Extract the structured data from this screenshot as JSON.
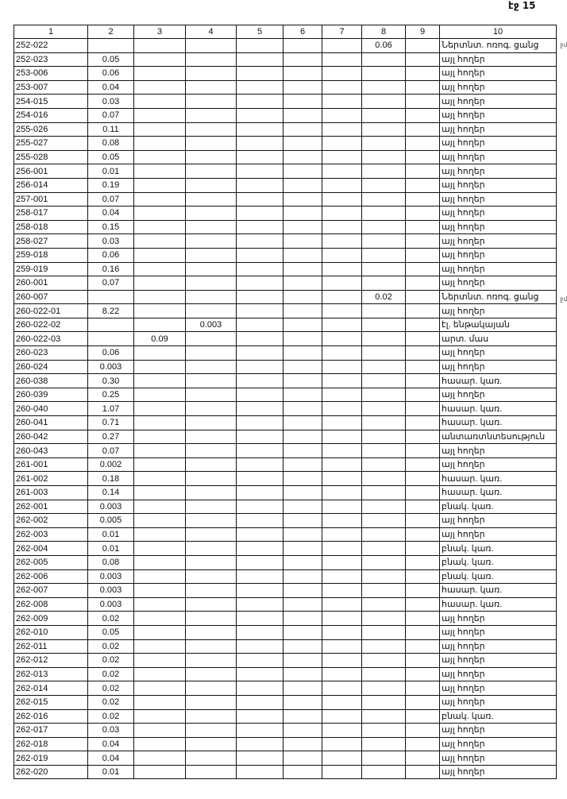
{
  "page_label": "էջ 15",
  "headers": [
    "1",
    "2",
    "3",
    "4",
    "5",
    "6",
    "7",
    "8",
    "9",
    "10"
  ],
  "rows": [
    [
      "252-022",
      "",
      "",
      "",
      "",
      "",
      "",
      "0.06",
      "",
      "Ներտնտ. ոռոգ. ցանց"
    ],
    [
      "252-023",
      "0.05",
      "",
      "",
      "",
      "",
      "",
      "",
      "",
      "այլ հողեր"
    ],
    [
      "253-006",
      "0.06",
      "",
      "",
      "",
      "",
      "",
      "",
      "",
      "այլ հողեր"
    ],
    [
      "253-007",
      "0.04",
      "",
      "",
      "",
      "",
      "",
      "",
      "",
      "այլ հողեր"
    ],
    [
      "254-015",
      "0.03",
      "",
      "",
      "",
      "",
      "",
      "",
      "",
      "այլ հողեր"
    ],
    [
      "254-016",
      "0.07",
      "",
      "",
      "",
      "",
      "",
      "",
      "",
      "այլ հողեր"
    ],
    [
      "255-026",
      "0.11",
      "",
      "",
      "",
      "",
      "",
      "",
      "",
      "այլ հողեր"
    ],
    [
      "255-027",
      "0.08",
      "",
      "",
      "",
      "",
      "",
      "",
      "",
      "այլ հողեր"
    ],
    [
      "255-028",
      "0.05",
      "",
      "",
      "",
      "",
      "",
      "",
      "",
      "այլ հողեր"
    ],
    [
      "256-001",
      "0.01",
      "",
      "",
      "",
      "",
      "",
      "",
      "",
      "այլ հողեր"
    ],
    [
      "256-014",
      "0.19",
      "",
      "",
      "",
      "",
      "",
      "",
      "",
      "այլ հողեր"
    ],
    [
      "257-001",
      "0.07",
      "",
      "",
      "",
      "",
      "",
      "",
      "",
      "այլ հողեր"
    ],
    [
      "258-017",
      "0.04",
      "",
      "",
      "",
      "",
      "",
      "",
      "",
      "այլ հողեր"
    ],
    [
      "258-018",
      "0.15",
      "",
      "",
      "",
      "",
      "",
      "",
      "",
      "այլ հողեր"
    ],
    [
      "258-027",
      "0.03",
      "",
      "",
      "",
      "",
      "",
      "",
      "",
      "այլ հողեր"
    ],
    [
      "259-018",
      "0.06",
      "",
      "",
      "",
      "",
      "",
      "",
      "",
      "այլ հողեր"
    ],
    [
      "259-019",
      "0.16",
      "",
      "",
      "",
      "",
      "",
      "",
      "",
      "այլ հողեր"
    ],
    [
      "260-001",
      "0.07",
      "",
      "",
      "",
      "",
      "",
      "",
      "",
      "այլ հողեր"
    ],
    [
      "260-007",
      "",
      "",
      "",
      "",
      "",
      "",
      "0.02",
      "",
      "Ներտնտ. ոռոգ. ցանց"
    ],
    [
      "260-022-01",
      "8.22",
      "",
      "",
      "",
      "",
      "",
      "",
      "",
      "այլ հողեր"
    ],
    [
      "260-022-02",
      "",
      "",
      "0.003",
      "",
      "",
      "",
      "",
      "",
      "էլ. ենթակայան"
    ],
    [
      "260-022-03",
      "",
      "0.09",
      "",
      "",
      "",
      "",
      "",
      "",
      "արտ. մաս"
    ],
    [
      "260-023",
      "0.06",
      "",
      "",
      "",
      "",
      "",
      "",
      "",
      "այլ հողեր"
    ],
    [
      "260-024",
      "0.003",
      "",
      "",
      "",
      "",
      "",
      "",
      "",
      "այլ հողեր"
    ],
    [
      "260-038",
      "0.30",
      "",
      "",
      "",
      "",
      "",
      "",
      "",
      "հասար. կառ."
    ],
    [
      "260-039",
      "0.25",
      "",
      "",
      "",
      "",
      "",
      "",
      "",
      "այլ հողեր"
    ],
    [
      "260-040",
      "1.07",
      "",
      "",
      "",
      "",
      "",
      "",
      "",
      "հասար. կառ."
    ],
    [
      "260-041",
      "0.71",
      "",
      "",
      "",
      "",
      "",
      "",
      "",
      "հասար. կառ."
    ],
    [
      "260-042",
      "0.27",
      "",
      "",
      "",
      "",
      "",
      "",
      "",
      "անտառտնտեսություն"
    ],
    [
      "260-043",
      "0.07",
      "",
      "",
      "",
      "",
      "",
      "",
      "",
      "այլ հողեր"
    ],
    [
      "261-001",
      "0.002",
      "",
      "",
      "",
      "",
      "",
      "",
      "",
      "այլ հողեր"
    ],
    [
      "261-002",
      "0.18",
      "",
      "",
      "",
      "",
      "",
      "",
      "",
      "հասար. կառ."
    ],
    [
      "261-003",
      "0.14",
      "",
      "",
      "",
      "",
      "",
      "",
      "",
      "հասար. կառ."
    ],
    [
      "262-001",
      "0.003",
      "",
      "",
      "",
      "",
      "",
      "",
      "",
      "բնակ. կառ."
    ],
    [
      "262-002",
      "0.005",
      "",
      "",
      "",
      "",
      "",
      "",
      "",
      "այլ հողեր"
    ],
    [
      "262-003",
      "0.01",
      "",
      "",
      "",
      "",
      "",
      "",
      "",
      "այլ հողեր"
    ],
    [
      "262-004",
      "0.01",
      "",
      "",
      "",
      "",
      "",
      "",
      "",
      "բնակ. կառ."
    ],
    [
      "262-005",
      "0.08",
      "",
      "",
      "",
      "",
      "",
      "",
      "",
      "բնակ. կառ."
    ],
    [
      "262-006",
      "0.003",
      "",
      "",
      "",
      "",
      "",
      "",
      "",
      "բնակ. կառ."
    ],
    [
      "262-007",
      "0.003",
      "",
      "",
      "",
      "",
      "",
      "",
      "",
      "հասար. կառ."
    ],
    [
      "262-008",
      "0.003",
      "",
      "",
      "",
      "",
      "",
      "",
      "",
      "հասար. կառ."
    ],
    [
      "262-009",
      "0.02",
      "",
      "",
      "",
      "",
      "",
      "",
      "",
      "այլ հողեր"
    ],
    [
      "262-010",
      "0.05",
      "",
      "",
      "",
      "",
      "",
      "",
      "",
      "այլ հողեր"
    ],
    [
      "262-011",
      "0.02",
      "",
      "",
      "",
      "",
      "",
      "",
      "",
      "այլ հողեր"
    ],
    [
      "262-012",
      "0.02",
      "",
      "",
      "",
      "",
      "",
      "",
      "",
      "այլ հողեր"
    ],
    [
      "262-013",
      "0.02",
      "",
      "",
      "",
      "",
      "",
      "",
      "",
      "այլ հողեր"
    ],
    [
      "262-014",
      "0.02",
      "",
      "",
      "",
      "",
      "",
      "",
      "",
      "այլ հողեր"
    ],
    [
      "262-015",
      "0.02",
      "",
      "",
      "",
      "",
      "",
      "",
      "",
      "այլ հողեր"
    ],
    [
      "262-016",
      "0.02",
      "",
      "",
      "",
      "",
      "",
      "",
      "",
      "բնակ. կառ."
    ],
    [
      "262-017",
      "0.03",
      "",
      "",
      "",
      "",
      "",
      "",
      "",
      "այլ հողեր"
    ],
    [
      "262-018",
      "0.04",
      "",
      "",
      "",
      "",
      "",
      "",
      "",
      "այլ հողեր"
    ],
    [
      "262-019",
      "0.04",
      "",
      "",
      "",
      "",
      "",
      "",
      "",
      "այլ հողեր"
    ],
    [
      "262-020",
      "0.01",
      "",
      "",
      "",
      "",
      "",
      "",
      "",
      "այլ հողեր"
    ]
  ],
  "margin_marks": [
    "ջմ",
    "ջմ"
  ]
}
